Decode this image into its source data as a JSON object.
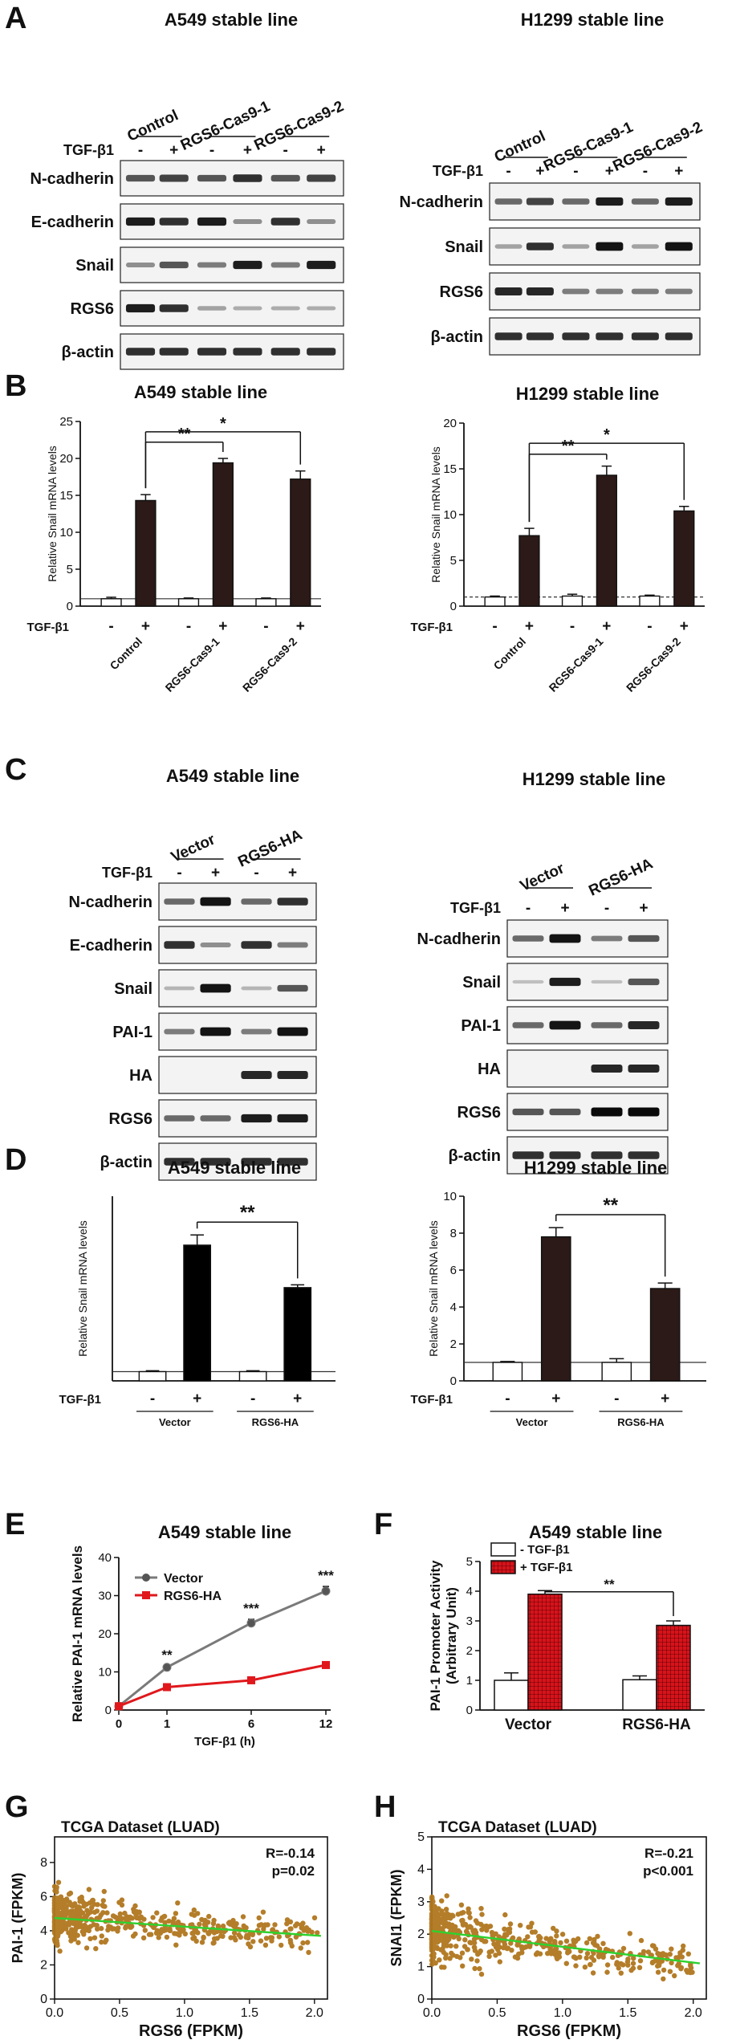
{
  "figure": {
    "panel_labels": {
      "A": "A",
      "B": "B",
      "C": "C",
      "D": "D",
      "E": "E",
      "F": "F",
      "G": "G",
      "H": "H"
    },
    "titles": {
      "A_left": "A549 stable line",
      "A_right": "H1299 stable line",
      "B_left": "A549 stable line",
      "B_right": "H1299 stable line",
      "C_left": "A549 stable line",
      "C_right": "H1299 stable line",
      "D_left": "A549 stable line",
      "D_right": "H1299 stable line",
      "E": "A549 stable line",
      "F": "A549 stable line"
    },
    "common": {
      "tgf": "TGF-β1",
      "minus": "-",
      "plus": "+",
      "control": "Control",
      "cas1": "RGS6-Cas9-1",
      "cas2": "RGS6-Cas9-2",
      "vector": "Vector",
      "rgs6ha": "RGS6-HA",
      "snail_ylabel": "Relative Snail mRNA levels",
      "sig2": "**",
      "sig1": "*",
      "sig3": "***"
    },
    "blots": {
      "A_left": [
        "N-cadherin",
        "E-cadherin",
        "Snail",
        "RGS6",
        "β-actin"
      ],
      "A_right": [
        "N-cadherin",
        "Snail",
        "RGS6",
        "β-actin"
      ],
      "C_left": [
        "N-cadherin",
        "E-cadherin",
        "Snail",
        "PAI-1",
        "HA",
        "RGS6",
        "β-actin"
      ],
      "C_right": [
        "N-cadherin",
        "Snail",
        "PAI-1",
        "HA",
        "RGS6",
        "β-actin"
      ]
    }
  },
  "chart_data": [
    {
      "id": "B_left",
      "type": "bar",
      "title": "A549 stable line",
      "ylabel": "Relative Snail mRNA levels",
      "ylim": [
        0,
        25
      ],
      "yticks": [
        "0",
        "5",
        "10",
        "15",
        "20",
        "25"
      ],
      "baseline": 1,
      "categories": [
        "-",
        "+",
        "-",
        "+",
        "-",
        "+"
      ],
      "groups": [
        "Control",
        "RGS6-Cas9-1",
        "RGS6-Cas9-2"
      ],
      "values": [
        1,
        14.3,
        1,
        19.4,
        1,
        17.2
      ],
      "errors": [
        0.2,
        0.8,
        0.1,
        0.6,
        0.1,
        1.1
      ],
      "significance": [
        "**",
        "*"
      ]
    },
    {
      "id": "B_right",
      "type": "bar",
      "title": "H1299 stable line",
      "ylabel": "Relative Snail mRNA levels",
      "ylim": [
        0,
        20
      ],
      "yticks": [
        "0",
        "5",
        "10",
        "15",
        "20"
      ],
      "baseline": 1,
      "categories": [
        "-",
        "+",
        "-",
        "+",
        "-",
        "+"
      ],
      "groups": [
        "Control",
        "RGS6-Cas9-1",
        "RGS6-Cas9-2"
      ],
      "values": [
        1,
        7.7,
        1.1,
        14.3,
        1.1,
        10.4
      ],
      "errors": [
        0.1,
        0.8,
        0.2,
        1.0,
        0.1,
        0.5
      ],
      "significance": [
        "**",
        "*"
      ]
    },
    {
      "id": "D_left",
      "type": "bar",
      "title": "A549 stable line",
      "ylabel": "Relative Snail mRNA levels",
      "ylim": [
        0,
        20
      ],
      "yticks": [],
      "baseline": 1,
      "categories": [
        "-",
        "+",
        "-",
        "+"
      ],
      "groups": [
        "Vector",
        "RGS6-HA"
      ],
      "values": [
        1,
        14.7,
        1,
        10.1
      ],
      "errors": [
        0.1,
        1.1,
        0.1,
        0.3
      ],
      "significance": [
        "**"
      ]
    },
    {
      "id": "D_right",
      "type": "bar",
      "title": "H1299 stable line",
      "ylabel": "Relative Snail mRNA levels",
      "ylim": [
        0,
        10
      ],
      "yticks": [
        "0",
        "2",
        "4",
        "6",
        "8",
        "10"
      ],
      "baseline": 1,
      "categories": [
        "-",
        "+",
        "-",
        "+"
      ],
      "groups": [
        "Vector",
        "RGS6-HA"
      ],
      "values": [
        1,
        7.8,
        1,
        5.0
      ],
      "errors": [
        0.05,
        0.5,
        0.2,
        0.3
      ],
      "significance": [
        "**"
      ]
    },
    {
      "id": "E",
      "type": "line",
      "title": "A549 stable line",
      "xlabel": "TGF-β1 (h)",
      "ylabel": "Relative PAI-1 mRNA levels",
      "x": [
        0,
        1,
        6,
        12
      ],
      "xticks": [
        "0",
        "1",
        "6",
        "12"
      ],
      "ylim": [
        0,
        40
      ],
      "yticks": [
        "0",
        "10",
        "20",
        "30",
        "40"
      ],
      "series": [
        {
          "name": "Vector",
          "color": "#7a7a7a",
          "values": [
            1,
            11.2,
            22.8,
            31.2
          ],
          "errors": [
            0.2,
            0.4,
            1.0,
            1.2
          ]
        },
        {
          "name": "RGS6-HA",
          "color": "#e0181c",
          "values": [
            1,
            6.0,
            7.8,
            11.8
          ],
          "errors": [
            0.2,
            0.3,
            0.4,
            0.4
          ]
        }
      ],
      "significance": [
        "**",
        "***",
        "***"
      ]
    },
    {
      "id": "F",
      "type": "bar",
      "title": "A549 stable line",
      "ylabel": "PAI-1 Promoter Activity (Arbitrary Unit)",
      "ylim": [
        0,
        5
      ],
      "yticks": [
        "0",
        "1",
        "2",
        "3",
        "4",
        "5"
      ],
      "groups": [
        "Vector",
        "RGS6-HA"
      ],
      "series": [
        {
          "name": "- TGF-β1",
          "color": "#ffffff",
          "values": [
            1.0,
            1.02
          ],
          "errors": [
            0.25,
            0.13
          ]
        },
        {
          "name": "+ TGF-β1",
          "color": "#d8131b",
          "values": [
            3.9,
            2.85
          ],
          "errors": [
            0.12,
            0.15
          ]
        }
      ],
      "significance": [
        "**"
      ]
    },
    {
      "id": "G",
      "type": "scatter",
      "title": "TCGA Dataset    (LUAD)",
      "xlabel": "RGS6  (FPKM)",
      "ylabel": "PAI-1  (FPKM)",
      "xlim": [
        0,
        2.1
      ],
      "ylim": [
        0,
        9.5
      ],
      "xticks": [
        "0.0",
        "0.5",
        "1.0",
        "1.5",
        "2.0"
      ],
      "yticks": [
        "0",
        "2",
        "4",
        "6",
        "8"
      ],
      "stats": [
        "R=-0.14",
        "p=0.02"
      ],
      "fit": {
        "x": [
          0,
          2.05
        ],
        "y": [
          4.75,
          3.7
        ]
      },
      "n_points": 600
    },
    {
      "id": "H",
      "type": "scatter",
      "title": "TCGA Dataset    (LUAD)",
      "xlabel": "RGS6  (FPKM)",
      "ylabel": "SNAI1  (FPKM)",
      "xlim": [
        0,
        2.1
      ],
      "ylim": [
        0,
        5
      ],
      "xticks": [
        "0.0",
        "0.5",
        "1.0",
        "1.5",
        "2.0"
      ],
      "yticks": [
        "0",
        "1",
        "2",
        "3",
        "4",
        "5"
      ],
      "stats": [
        "R=-0.21",
        "p<0.001"
      ],
      "fit": {
        "x": [
          0,
          2.05
        ],
        "y": [
          2.1,
          1.1
        ]
      },
      "n_points": 600
    }
  ]
}
